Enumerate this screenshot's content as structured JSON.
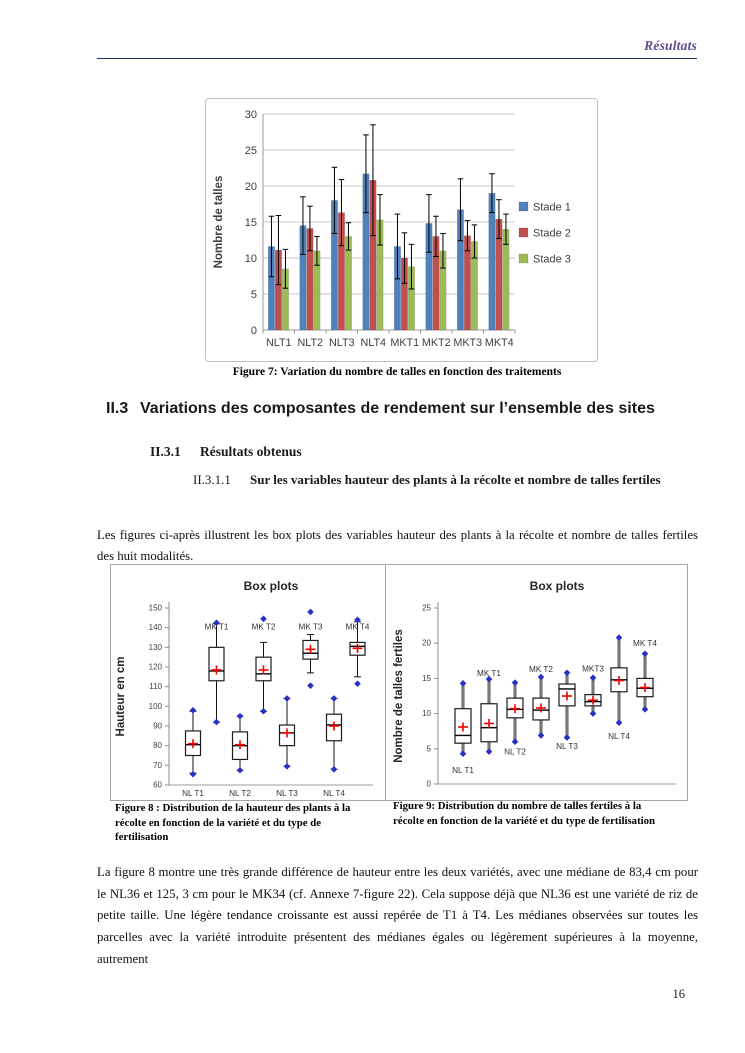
{
  "header": {
    "title": "Résultats",
    "accent_color": "#5f4b8b",
    "rule_color": "#17365d"
  },
  "page": {
    "number": "16"
  },
  "headings": {
    "h2_number": "II.3",
    "h2_text": "Variations des composantes de rendement sur l’ensemble des sites",
    "h3_number": "II.3.1",
    "h3_text": "Résultats obtenus",
    "h4_number": "II.3.1.1",
    "h4_text": "Sur les variables hauteur des plants à la récolte et nombre de talles fertiles"
  },
  "paragraphs": {
    "intro": "Les figures ci-après illustrent les box plots des variables hauteur des plants à la récolte et nombre de talles fertiles des huit modalités.",
    "analysis": "La figure 8 montre une très grande différence de hauteur entre les deux variétés, avec une médiane de 83,4 cm pour le NL36 et 125, 3 cm pour le MK34 (cf. Annexe 7-figure 22). Cela suppose déjà que NL36 est une variété de riz de petite taille.  Une légère tendance croissante est aussi repérée de T1 à T4. Les médianes observées sur toutes les parcelles avec la variété introduite présentent des médianes égales ou légèrement supérieures à la moyenne, autrement"
  },
  "figures": {
    "fig7_caption": "Figure 7: Variation du nombre de talles en fonction des traitements",
    "fig8_caption": "Figure 8 : Distribution de la hauteur des plants à la récolte en fonction de la variété et du type de fertilisation",
    "fig9_caption": "Figure 9: Distribution du nombre de talles fertiles à la récolte en fonction de la variété et du type de fertilisation"
  },
  "chart_data": [
    {
      "id": "nombre-de-talles-bar",
      "type": "bar",
      "title": "",
      "xlabel": "",
      "ylabel": "Nombre de talles",
      "ylim": [
        0,
        30
      ],
      "ytick_step": 5,
      "grid": true,
      "legend_position": "right",
      "categories": [
        "NLT1",
        "NLT2",
        "NLT3",
        "NLT4",
        "MKT1",
        "MKT2",
        "MKT3",
        "MKT4"
      ],
      "series": [
        {
          "name": "Stade 1",
          "color": "#4F81BD",
          "values": [
            11.6,
            14.5,
            18.0,
            21.7,
            11.6,
            14.8,
            16.7,
            19.0
          ],
          "errors": [
            4.2,
            4.0,
            4.6,
            5.4,
            4.5,
            4.0,
            4.3,
            2.7
          ]
        },
        {
          "name": "Stade 2",
          "color": "#C0504D",
          "values": [
            11.1,
            14.1,
            16.3,
            20.8,
            10.0,
            13.0,
            13.1,
            15.4
          ],
          "errors": [
            4.8,
            3.1,
            4.6,
            7.7,
            3.5,
            2.8,
            2.1,
            2.7
          ]
        },
        {
          "name": "Stade 3",
          "color": "#9BBB59",
          "values": [
            8.5,
            11.0,
            13.0,
            15.3,
            8.8,
            11.0,
            12.3,
            14.0
          ],
          "errors": [
            2.7,
            2.0,
            1.9,
            3.5,
            3.1,
            2.4,
            2.3,
            2.1
          ]
        }
      ]
    },
    {
      "id": "hauteur-boxplot",
      "type": "boxplot",
      "title": "Box plots",
      "ylabel": "Hauteur en cm",
      "ylim": [
        60,
        150
      ],
      "ytick_step": 10,
      "whisker_style": "thin-black",
      "marker_color": "#2b30c4",
      "mean_color": "#f00000",
      "boxes": [
        {
          "label": "NL T1",
          "label_pos": "axis",
          "low": 66,
          "q1": 75,
          "median": 80.5,
          "q3": 87.5,
          "high": 97.5,
          "mean": 81,
          "points": [
            65.5,
            98
          ]
        },
        {
          "label": "MK T1",
          "label_pos": 140.5,
          "low": 92,
          "q1": 113,
          "median": 118,
          "q3": 130,
          "high": 142,
          "mean": 118.5,
          "points": [
            92,
            142.5
          ]
        },
        {
          "label": "NL T2",
          "label_pos": "axis",
          "low": 67.5,
          "q1": 73,
          "median": 80,
          "q3": 87,
          "high": 95,
          "mean": 80.5,
          "points": [
            67.5,
            95
          ]
        },
        {
          "label": "MK T2",
          "label_pos": 140.5,
          "low": 97.5,
          "q1": 113,
          "median": 116.5,
          "q3": 125,
          "high": 132.5,
          "mean": 118.5,
          "points": [
            97.5,
            144.5
          ]
        },
        {
          "label": "NL T3",
          "label_pos": "axis",
          "low": 69.5,
          "q1": 80,
          "median": 86.5,
          "q3": 90.5,
          "high": 104,
          "mean": 86.5,
          "points": [
            69.5,
            104
          ]
        },
        {
          "label": "MK T3",
          "label_pos": 140.5,
          "low": 117,
          "q1": 124,
          "median": 127,
          "q3": 133.5,
          "high": 136.5,
          "mean": 129,
          "points": [
            110.5,
            148
          ]
        },
        {
          "label": "NL T4",
          "label_pos": "axis",
          "low": 68,
          "q1": 82.5,
          "median": 90.5,
          "q3": 96,
          "high": 104,
          "mean": 90,
          "points": [
            68,
            104
          ]
        },
        {
          "label": "MK T4",
          "label_pos": 140.5,
          "low": 115,
          "q1": 126,
          "median": 130.5,
          "q3": 132.5,
          "high": 143,
          "mean": 129.5,
          "points": [
            111.5,
            144
          ]
        }
      ]
    },
    {
      "id": "talles-fertiles-boxplot",
      "type": "boxplot",
      "title": "Box plots",
      "ylabel": "Nombre de talles fertiles",
      "ylim": [
        0,
        25
      ],
      "ytick_step": 5,
      "whisker_style": "thick-gray",
      "marker_color": "#2b30c4",
      "mean_color": "#f00000",
      "boxes": [
        {
          "label": "NL T1",
          "label_pos": 2.0,
          "low": 4.3,
          "q1": 5.8,
          "median": 6.9,
          "q3": 10.7,
          "high": 14.3,
          "mean": 8.1,
          "points": [
            4.3,
            14.3
          ]
        },
        {
          "label": "MK T1",
          "label_pos": 15.8,
          "low": 4.6,
          "q1": 6.0,
          "median": 8.0,
          "q3": 11.4,
          "high": 14.9,
          "mean": 8.6,
          "points": [
            4.6,
            14.9
          ]
        },
        {
          "label": "NL T2",
          "label_pos": 4.6,
          "low": 6.0,
          "q1": 9.4,
          "median": 10.6,
          "q3": 12.2,
          "high": 14.4,
          "mean": 10.7,
          "points": [
            6.0,
            14.4
          ]
        },
        {
          "label": "MK T2",
          "label_pos": 16.3,
          "low": 6.9,
          "q1": 9.1,
          "median": 10.5,
          "q3": 12.2,
          "high": 15.2,
          "mean": 10.8,
          "points": [
            6.9,
            15.2
          ]
        },
        {
          "label": "NL T3",
          "label_pos": 5.4,
          "low": 6.6,
          "q1": 11.1,
          "median": 13.5,
          "q3": 14.2,
          "high": 15.8,
          "mean": 12.5,
          "points": [
            6.6,
            15.8
          ]
        },
        {
          "label": "MKT3",
          "label_pos": 16.4,
          "low": 10.0,
          "q1": 11.1,
          "median": 11.7,
          "q3": 12.7,
          "high": 15.1,
          "mean": 11.9,
          "points": [
            10.0,
            15.1
          ]
        },
        {
          "label": "NL T4",
          "label_pos": 6.8,
          "low": 8.7,
          "q1": 13.1,
          "median": 14.8,
          "q3": 16.5,
          "high": 20.8,
          "mean": 14.7,
          "points": [
            8.7,
            20.8
          ]
        },
        {
          "label": "MK T4",
          "label_pos": 20.0,
          "low": 10.6,
          "q1": 12.4,
          "median": 13.6,
          "q3": 15.0,
          "high": 18.5,
          "mean": 13.7,
          "points": [
            10.6,
            18.5
          ]
        }
      ]
    }
  ]
}
